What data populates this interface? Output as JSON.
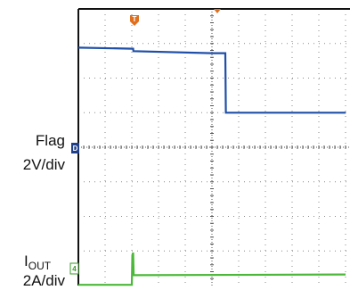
{
  "chart_data": {
    "type": "line",
    "title": "",
    "xlabel": "",
    "ylabel": "",
    "x_divisions": 10,
    "y_divisions": 8,
    "grid": true,
    "trigger_marker": "T",
    "series": [
      {
        "name": "Flag",
        "scale": "2V/div",
        "channel_marker": "D",
        "color": "#1f4fa8",
        "x": [
          0.0,
          2.05,
          2.06,
          5.0,
          5.5,
          5.52,
          10.0
        ],
        "y": [
          6.88,
          6.85,
          6.78,
          6.72,
          6.72,
          5.0,
          5.0
        ]
      },
      {
        "name": "IOUT",
        "scale": "2A/div",
        "channel_marker": "4",
        "color": "#4cb83a",
        "x": [
          0.0,
          2.0,
          2.02,
          2.05,
          2.07,
          10.0
        ],
        "y": [
          0.02,
          0.02,
          0.88,
          0.95,
          0.3,
          0.32
        ]
      }
    ]
  },
  "labels": {
    "flag_name": "Flag",
    "flag_scale": "2V/div",
    "iout_main": "I",
    "iout_sub": "OUT",
    "iout_scale": "2A/div",
    "trigger_marker": "T",
    "flag_marker": "D",
    "iout_marker": "4"
  },
  "colors": {
    "grid": "#8a8a8a",
    "frame": "#111111",
    "trigger": "#e07020",
    "flag_marker": "#1f3f8a",
    "iout_marker": "#3a9a2a"
  }
}
